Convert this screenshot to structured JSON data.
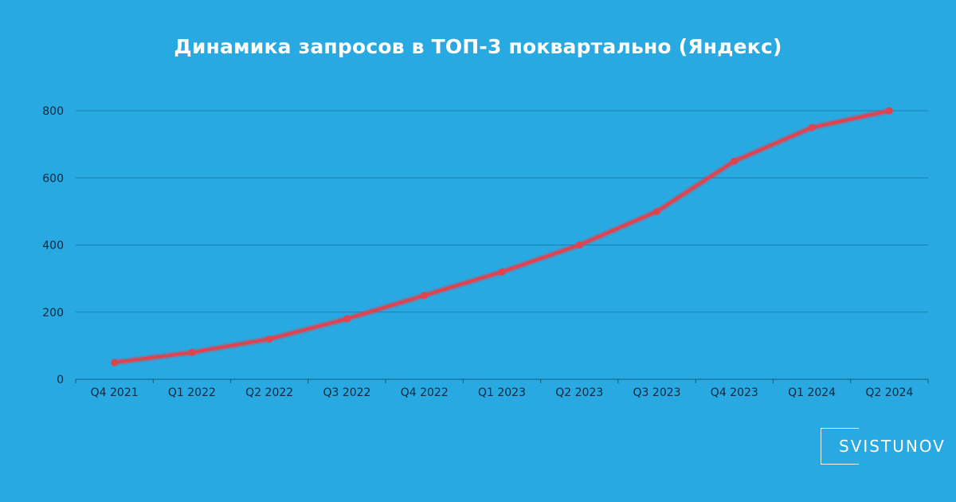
{
  "chart_data": {
    "type": "line",
    "title": "Динамика запросов в ТОП-3 поквартально (Яндекс)",
    "xlabel": "",
    "ylabel": "",
    "categories": [
      "Q4 2021",
      "Q1 2022",
      "Q2 2022",
      "Q3 2022",
      "Q4 2022",
      "Q1 2023",
      "Q2 2023",
      "Q3 2023",
      "Q4 2023",
      "Q1 2024",
      "Q2 2024"
    ],
    "series": [
      {
        "values": [
          50,
          80,
          120,
          180,
          250,
          320,
          400,
          500,
          650,
          750,
          800
        ],
        "color": "#e0424f"
      }
    ],
    "ylim": [
      0,
      800
    ],
    "yticks": [
      0,
      200,
      400,
      600,
      800
    ],
    "grid": true,
    "legend": "none",
    "colors": {
      "background": "#29a9e1",
      "grid": "#1a7fae",
      "line": "#e0424f",
      "tick_text": "#10263a",
      "title_text": "#ffffff"
    }
  },
  "branding": {
    "logo_text": "SVISTUNOV"
  }
}
